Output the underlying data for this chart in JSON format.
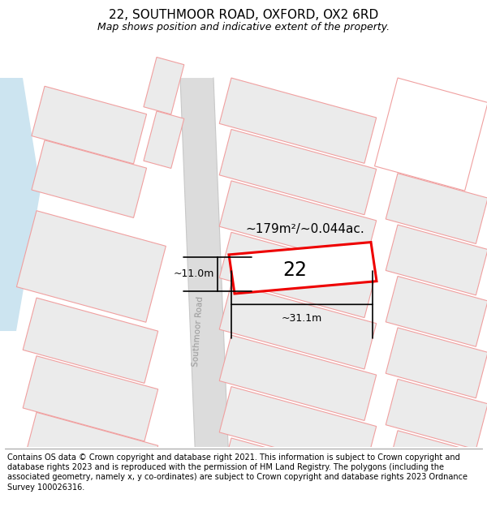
{
  "title": "22, SOUTHMOOR ROAD, OXFORD, OX2 6RD",
  "subtitle": "Map shows position and indicative extent of the property.",
  "footer": "Contains OS data © Crown copyright and database right 2021. This information is subject to Crown copyright and database rights 2023 and is reproduced with the permission of HM Land Registry. The polygons (including the associated geometry, namely x, y co-ordinates) are subject to Crown copyright and database rights 2023 Ordnance Survey 100026316.",
  "bg_map_color": "#f2f2f2",
  "road_color": "#dcdcdc",
  "road_edge_color": "#c8c8c8",
  "plot_outline_color": "#f0a0a0",
  "highlight_color": "#ee0000",
  "water_color": "#cce4f0",
  "area_text": "~179m²/~0.044ac.",
  "width_text": "~31.1m",
  "height_text": "~11.0m",
  "number_text": "22",
  "road_label": "Southmoor Road",
  "title_fontsize": 11,
  "subtitle_fontsize": 9,
  "footer_fontsize": 7.0
}
